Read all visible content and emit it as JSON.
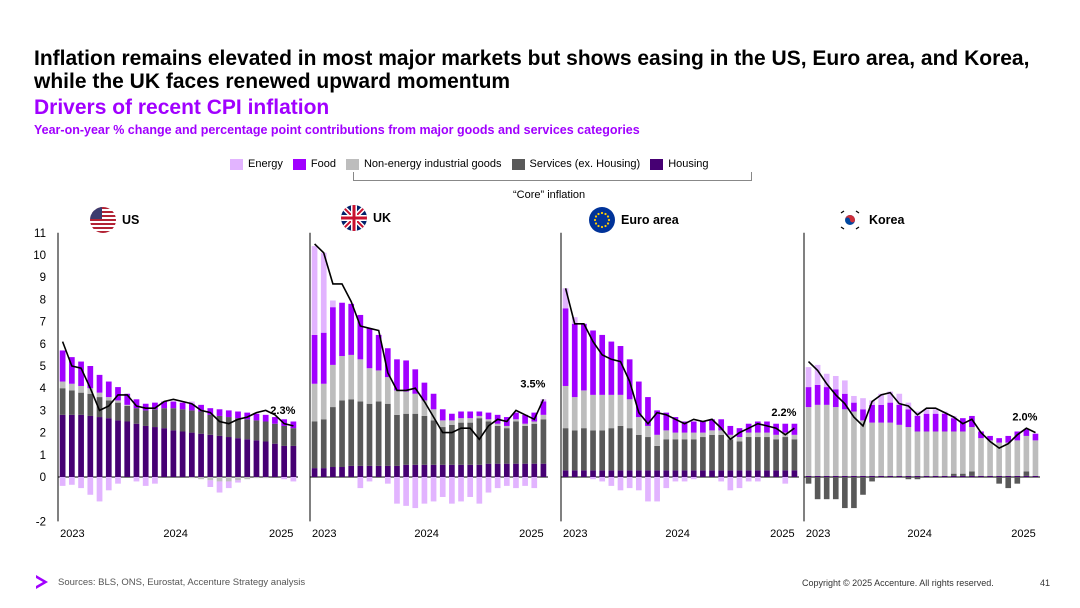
{
  "title": "Inflation remains elevated in most major markets but shows easing in the US, Euro area, and Korea, while the UK faces renewed upward momentum",
  "subtitle": "Drivers of recent CPI inflation",
  "subsubtitle": "Year-on-year % change and percentage point contributions from major goods and services categories",
  "legend": {
    "items": [
      {
        "label": "Energy",
        "color": "#e2b4ff"
      },
      {
        "label": "Food",
        "color": "#a100ff"
      },
      {
        "label": "Non-energy industrial goods",
        "color": "#bdbdbd"
      },
      {
        "label": "Services (ex. Housing)",
        "color": "#595959"
      },
      {
        "label": "Housing",
        "color": "#460073"
      }
    ],
    "core_label": "“Core” inflation"
  },
  "footer": {
    "sources": "Sources: BLS, ONS, Eurostat, Accenture Strategy analysis",
    "copyright": "Copyright © 2025 Accenture. All rights reserved.",
    "page": "41"
  },
  "chart_data": {
    "type": "bar",
    "stacked": true,
    "ylim": [
      -2,
      11
    ],
    "yticks": [
      "11",
      "10",
      "9",
      "8",
      "7",
      "6",
      "5",
      "4",
      "3",
      "2",
      "1",
      "0",
      "-2"
    ],
    "series_order": [
      "Housing",
      "Services (ex. Housing)",
      "Non-energy industrial goods",
      "Food",
      "Energy"
    ],
    "colors": {
      "Energy": "#e2b4ff",
      "Food": "#a100ff",
      "Non-energy industrial goods": "#bdbdbd",
      "Services (ex. Housing)": "#595959",
      "Housing": "#460073",
      "line": "#000000"
    },
    "panels": [
      {
        "name": "US",
        "xticks": [
          "2023",
          "2024",
          "2025"
        ],
        "last_label": "2.3%",
        "headline": [
          6.1,
          5.0,
          4.9,
          4.0,
          3.0,
          3.2,
          3.7,
          3.7,
          3.2,
          3.1,
          3.1,
          3.4,
          3.5,
          3.4,
          3.3,
          3.0,
          2.9,
          2.5,
          2.4,
          2.6,
          2.7,
          2.9,
          3.0,
          2.8,
          2.4,
          2.3
        ],
        "series": {
          "Housing": [
            2.8,
            2.8,
            2.8,
            2.75,
            2.7,
            2.65,
            2.55,
            2.5,
            2.4,
            2.3,
            2.25,
            2.2,
            2.1,
            2.05,
            2.0,
            1.95,
            1.9,
            1.85,
            1.8,
            1.75,
            1.7,
            1.65,
            1.6,
            1.5,
            1.4,
            1.4
          ],
          "Services (ex. Housing)": [
            1.2,
            1.1,
            1.0,
            1.0,
            0.9,
            0.8,
            0.8,
            0.7,
            0.7,
            0.7,
            0.8,
            0.9,
            1.0,
            1.0,
            1.0,
            1.0,
            0.9,
            0.9,
            0.9,
            0.9,
            0.9,
            0.9,
            0.9,
            0.9,
            0.9,
            0.8
          ],
          "Non-energy industrial goods": [
            0.3,
            0.3,
            0.3,
            0.25,
            0.2,
            0.15,
            0.1,
            0.05,
            0.0,
            0.0,
            0.0,
            0.0,
            0.0,
            0.0,
            -0.05,
            -0.1,
            -0.15,
            -0.2,
            -0.2,
            -0.15,
            -0.1,
            -0.05,
            -0.05,
            0.0,
            0.0,
            0.0
          ],
          "Food": [
            1.4,
            1.2,
            1.1,
            1.0,
            0.8,
            0.7,
            0.6,
            0.5,
            0.4,
            0.3,
            0.3,
            0.3,
            0.3,
            0.3,
            0.3,
            0.3,
            0.3,
            0.3,
            0.3,
            0.3,
            0.3,
            0.3,
            0.3,
            0.3,
            0.3,
            0.3
          ],
          "Energy": [
            -0.4,
            -0.35,
            -0.5,
            -0.8,
            -1.1,
            -0.6,
            -0.3,
            0.0,
            -0.2,
            -0.4,
            -0.3,
            0.0,
            0.0,
            0.0,
            0.1,
            0.0,
            -0.3,
            -0.5,
            -0.3,
            -0.1,
            0.0,
            0.0,
            0.0,
            0.0,
            -0.1,
            -0.2
          ]
        }
      },
      {
        "name": "UK",
        "xticks": [
          "2023",
          "2024",
          "2025"
        ],
        "last_label": "3.5%",
        "headline": [
          10.5,
          10.1,
          8.7,
          8.7,
          7.9,
          6.8,
          6.7,
          6.6,
          4.7,
          3.9,
          3.9,
          4.0,
          3.4,
          2.7,
          2.0,
          2.0,
          2.2,
          2.2,
          1.7,
          2.3,
          2.6,
          2.5,
          3.0,
          2.8,
          2.6,
          3.5
        ],
        "series": {
          "Housing": [
            0.4,
            0.4,
            0.45,
            0.45,
            0.5,
            0.5,
            0.5,
            0.5,
            0.5,
            0.5,
            0.55,
            0.55,
            0.55,
            0.55,
            0.55,
            0.55,
            0.55,
            0.55,
            0.55,
            0.6,
            0.6,
            0.6,
            0.6,
            0.6,
            0.6,
            0.6
          ],
          "Services (ex. Housing)": [
            2.1,
            2.2,
            2.7,
            3.0,
            3.0,
            2.9,
            2.8,
            2.9,
            2.8,
            2.3,
            2.3,
            2.3,
            2.2,
            2.0,
            1.7,
            1.8,
            1.9,
            1.9,
            2.1,
            1.9,
            1.7,
            1.6,
            1.9,
            1.7,
            1.8,
            2.0
          ],
          "Non-energy industrial goods": [
            1.7,
            1.6,
            1.9,
            2.0,
            2.0,
            1.9,
            1.6,
            1.4,
            1.2,
            1.1,
            1.0,
            0.9,
            0.7,
            0.5,
            0.3,
            0.2,
            0.2,
            0.2,
            0.1,
            0.1,
            0.1,
            0.1,
            0.1,
            0.1,
            0.1,
            0.2
          ],
          "Food": [
            2.2,
            2.3,
            2.6,
            2.4,
            2.3,
            2.0,
            1.8,
            1.6,
            1.3,
            1.4,
            1.4,
            1.1,
            0.8,
            0.7,
            0.5,
            0.3,
            0.3,
            0.3,
            0.2,
            0.3,
            0.4,
            0.4,
            0.3,
            0.4,
            0.4,
            0.6
          ],
          "Energy": [
            4.0,
            3.6,
            0.3,
            0.0,
            0.0,
            -0.5,
            -0.2,
            0.0,
            -0.3,
            -1.2,
            -1.3,
            -1.4,
            -1.2,
            -1.1,
            -0.9,
            -1.2,
            -1.1,
            -0.9,
            -1.2,
            -0.7,
            -0.5,
            -0.4,
            -0.5,
            -0.4,
            -0.5,
            0.1
          ]
        }
      },
      {
        "name": "Euro area",
        "xticks": [
          "2023",
          "2024",
          "2025"
        ],
        "last_label": "2.2%",
        "headline": [
          8.5,
          6.9,
          6.9,
          6.1,
          5.5,
          5.3,
          5.2,
          4.3,
          2.9,
          2.4,
          2.9,
          2.8,
          2.6,
          2.4,
          2.6,
          2.5,
          2.6,
          2.2,
          1.7,
          2.0,
          2.2,
          2.4,
          2.3,
          2.2,
          1.9,
          2.2
        ],
        "series": {
          "Housing": [
            0.3,
            0.3,
            0.3,
            0.3,
            0.3,
            0.3,
            0.3,
            0.3,
            0.3,
            0.3,
            0.3,
            0.3,
            0.3,
            0.3,
            0.3,
            0.3,
            0.3,
            0.3,
            0.3,
            0.3,
            0.3,
            0.3,
            0.3,
            0.3,
            0.3,
            0.3
          ],
          "Services (ex. Housing)": [
            1.9,
            1.8,
            1.9,
            1.8,
            1.8,
            1.9,
            2.0,
            1.9,
            1.6,
            1.5,
            1.1,
            1.4,
            1.4,
            1.4,
            1.4,
            1.5,
            1.6,
            1.6,
            1.4,
            1.3,
            1.5,
            1.5,
            1.5,
            1.4,
            1.5,
            1.4
          ],
          "Non-energy industrial goods": [
            1.9,
            1.5,
            1.7,
            1.6,
            1.6,
            1.5,
            1.4,
            1.3,
            0.8,
            0.5,
            0.5,
            0.4,
            0.3,
            0.3,
            0.3,
            0.2,
            0.2,
            0.2,
            0.2,
            0.2,
            0.2,
            0.2,
            0.2,
            0.2,
            0.2,
            0.2
          ],
          "Food": [
            3.5,
            3.3,
            3.0,
            2.9,
            2.7,
            2.4,
            2.2,
            1.8,
            1.6,
            1.3,
            1.1,
            0.8,
            0.7,
            0.5,
            0.5,
            0.5,
            0.5,
            0.5,
            0.4,
            0.4,
            0.4,
            0.5,
            0.5,
            0.5,
            0.4,
            0.5
          ],
          "Energy": [
            0.9,
            0.3,
            0.0,
            -0.1,
            -0.2,
            -0.4,
            -0.6,
            -0.5,
            -0.6,
            -1.1,
            -1.1,
            -0.5,
            -0.2,
            -0.2,
            -0.1,
            0.0,
            0.0,
            -0.2,
            -0.6,
            -0.5,
            -0.2,
            -0.2,
            0.0,
            0.0,
            -0.3,
            0.0
          ]
        }
      },
      {
        "name": "Korea",
        "xticks": [
          "2023",
          "2024",
          "2025"
        ],
        "last_label": "2.0%",
        "headline": [
          5.2,
          4.8,
          4.2,
          3.7,
          3.3,
          2.7,
          2.3,
          3.4,
          3.7,
          3.8,
          3.3,
          3.2,
          2.8,
          3.1,
          3.1,
          2.9,
          2.7,
          2.4,
          2.6,
          2.0,
          1.6,
          1.3,
          1.5,
          1.9,
          2.2,
          2.0
        ],
        "series": {
          "Housing": [
            0.05,
            0.05,
            0.05,
            0.05,
            0.05,
            0.05,
            0.05,
            0.05,
            0.05,
            0.05,
            0.05,
            0.05,
            0.05,
            0.05,
            0.05,
            0.05,
            0.05,
            0.05,
            0.05,
            0.05,
            0.05,
            0.05,
            0.05,
            0.05,
            0.05,
            0.05
          ],
          "Services (ex. Housing)": [
            -0.3,
            -1.0,
            -1.0,
            -1.0,
            -1.4,
            -1.4,
            -0.8,
            -0.2,
            0.0,
            0.0,
            0.0,
            -0.1,
            -0.1,
            0.0,
            0.0,
            0.0,
            0.1,
            0.1,
            0.2,
            0.0,
            0.0,
            -0.3,
            -0.5,
            -0.3,
            0.2,
            0.0
          ],
          "Non-energy industrial goods": [
            3.1,
            3.2,
            3.2,
            3.1,
            3.0,
            2.9,
            2.5,
            2.4,
            2.4,
            2.4,
            2.3,
            2.2,
            2.0,
            2.0,
            2.0,
            2.0,
            1.9,
            1.9,
            2.0,
            1.7,
            1.6,
            1.5,
            1.5,
            1.6,
            1.6,
            1.6
          ],
          "Food": [
            0.9,
            0.9,
            0.8,
            0.8,
            0.7,
            0.4,
            0.5,
            0.8,
            0.8,
            0.9,
            0.9,
            0.8,
            0.7,
            0.8,
            0.8,
            0.8,
            0.6,
            0.6,
            0.5,
            0.3,
            0.2,
            0.2,
            0.3,
            0.4,
            0.3,
            0.3
          ],
          "Energy": [
            0.9,
            0.9,
            0.6,
            0.6,
            0.6,
            0.3,
            0.5,
            0.2,
            0.5,
            0.5,
            0.5,
            0.3,
            0.2,
            0.2,
            0.2,
            0.1,
            0.1,
            0.0,
            0.0,
            0.0,
            0.0,
            0.0,
            0.0,
            0.0,
            0.0,
            0.0
          ]
        }
      }
    ]
  }
}
